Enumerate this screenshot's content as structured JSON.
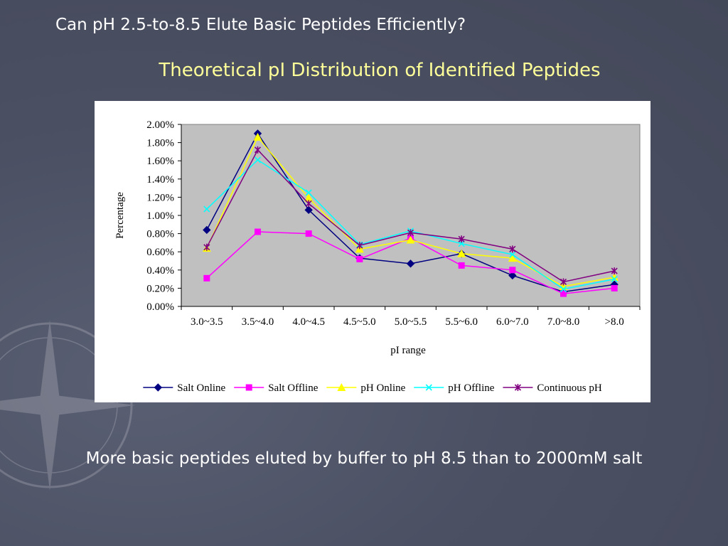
{
  "slide": {
    "title": "Can pH 2.5-to-8.5 Elute Basic Peptides Efficiently?",
    "caption": "More basic peptides eluted by buffer to pH 8.5 than to 2000mM salt"
  },
  "chart_data": {
    "type": "line",
    "title": "Theoretical pI Distribution of Identified Peptides",
    "xlabel": "pI range",
    "ylabel": "Percentage",
    "categories": [
      "3.0~3.5",
      "3.5~4.0",
      "4.0~4.5",
      "4.5~5.0",
      "5.0~5.5",
      "5.5~6.0",
      "6.0~7.0",
      "7.0~8.0",
      ">8.0"
    ],
    "y_ticks": [
      "0.00%",
      "0.20%",
      "0.40%",
      "0.60%",
      "0.80%",
      "1.00%",
      "1.20%",
      "1.40%",
      "1.60%",
      "1.80%",
      "2.00%"
    ],
    "ylim": [
      0,
      2.0
    ],
    "y_unit": "%",
    "grid": false,
    "plot_background": "#c0c0c0",
    "legend_position": "bottom",
    "series": [
      {
        "name": "Salt Online",
        "color": "#000080",
        "marker": "diamond",
        "values": [
          0.84,
          1.9,
          1.06,
          0.53,
          0.47,
          0.58,
          0.34,
          0.16,
          0.24
        ]
      },
      {
        "name": "Salt Offline",
        "color": "#ff00ff",
        "marker": "square",
        "values": [
          0.31,
          0.82,
          0.8,
          0.52,
          0.75,
          0.45,
          0.4,
          0.14,
          0.2
        ]
      },
      {
        "name": "pH Online",
        "color": "#ffff00",
        "marker": "triangle",
        "values": [
          0.64,
          1.86,
          1.19,
          0.63,
          0.73,
          0.58,
          0.53,
          0.22,
          0.32
        ]
      },
      {
        "name": "pH Offline",
        "color": "#00ffff",
        "marker": "x",
        "values": [
          1.07,
          1.61,
          1.25,
          0.68,
          0.83,
          0.69,
          0.57,
          0.19,
          0.3
        ]
      },
      {
        "name": "Continuous pH",
        "color": "#800080",
        "marker": "star",
        "values": [
          0.65,
          1.72,
          1.13,
          0.67,
          0.81,
          0.74,
          0.63,
          0.27,
          0.39
        ]
      }
    ]
  }
}
